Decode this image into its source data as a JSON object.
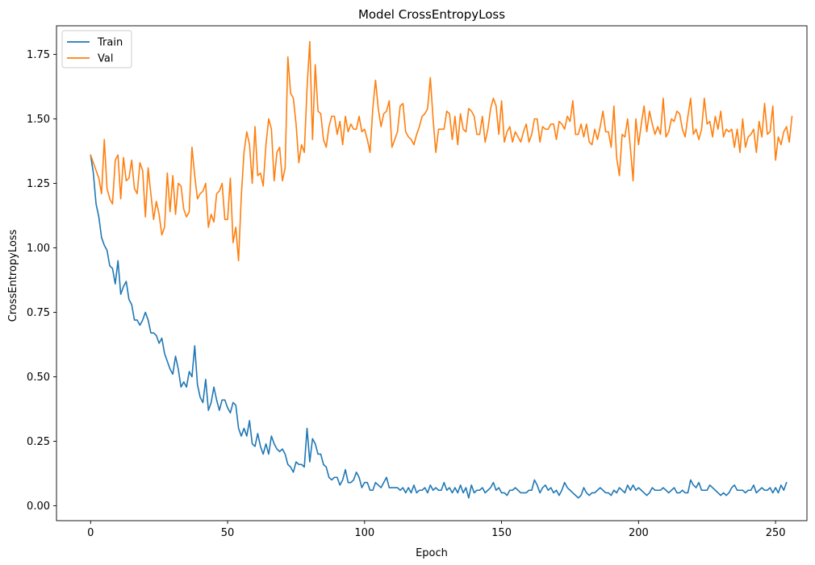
{
  "chart_data": {
    "type": "line",
    "title": "Model CrossEntropyLoss",
    "xlabel": "Epoch",
    "ylabel": "CrossEntropyLoss",
    "xlim": [
      -12.45,
      261.45
    ],
    "ylim": [
      -0.058,
      1.861
    ],
    "xticks": [
      0,
      50,
      100,
      150,
      200,
      250
    ],
    "yticks": [
      0.0,
      0.25,
      0.5,
      0.75,
      1.0,
      1.25,
      1.5,
      1.75
    ],
    "ytick_labels": [
      "0.00",
      "0.25",
      "0.50",
      "0.75",
      "1.00",
      "1.25",
      "1.50",
      "1.75"
    ],
    "xtick_labels": [
      "0",
      "50",
      "100",
      "150",
      "200",
      "250"
    ],
    "grid": false,
    "legend_position": "top-left",
    "series": [
      {
        "name": "Train",
        "color": "#1f77b4",
        "values": [
          1.36,
          1.29,
          1.17,
          1.12,
          1.04,
          1.01,
          0.99,
          0.93,
          0.92,
          0.86,
          0.95,
          0.82,
          0.85,
          0.87,
          0.8,
          0.78,
          0.72,
          0.72,
          0.7,
          0.72,
          0.75,
          0.72,
          0.67,
          0.67,
          0.66,
          0.63,
          0.65,
          0.59,
          0.56,
          0.53,
          0.51,
          0.58,
          0.53,
          0.46,
          0.48,
          0.46,
          0.52,
          0.5,
          0.62,
          0.47,
          0.42,
          0.4,
          0.49,
          0.37,
          0.4,
          0.46,
          0.41,
          0.37,
          0.41,
          0.41,
          0.38,
          0.36,
          0.4,
          0.39,
          0.3,
          0.27,
          0.3,
          0.27,
          0.33,
          0.24,
          0.23,
          0.28,
          0.23,
          0.2,
          0.24,
          0.2,
          0.27,
          0.24,
          0.22,
          0.21,
          0.22,
          0.2,
          0.16,
          0.15,
          0.13,
          0.17,
          0.16,
          0.16,
          0.15,
          0.3,
          0.17,
          0.26,
          0.24,
          0.2,
          0.2,
          0.16,
          0.15,
          0.11,
          0.1,
          0.11,
          0.11,
          0.08,
          0.1,
          0.14,
          0.09,
          0.09,
          0.1,
          0.13,
          0.11,
          0.07,
          0.09,
          0.09,
          0.06,
          0.06,
          0.09,
          0.08,
          0.07,
          0.09,
          0.11,
          0.07,
          0.07,
          0.07,
          0.07,
          0.06,
          0.07,
          0.05,
          0.07,
          0.05,
          0.08,
          0.05,
          0.06,
          0.06,
          0.07,
          0.05,
          0.08,
          0.06,
          0.07,
          0.06,
          0.06,
          0.09,
          0.06,
          0.07,
          0.05,
          0.07,
          0.05,
          0.08,
          0.05,
          0.07,
          0.03,
          0.08,
          0.05,
          0.06,
          0.06,
          0.07,
          0.05,
          0.06,
          0.07,
          0.09,
          0.06,
          0.07,
          0.05,
          0.05,
          0.04,
          0.06,
          0.06,
          0.07,
          0.06,
          0.05,
          0.05,
          0.05,
          0.06,
          0.06,
          0.1,
          0.08,
          0.05,
          0.07,
          0.08,
          0.06,
          0.07,
          0.05,
          0.06,
          0.04,
          0.06,
          0.09,
          0.07,
          0.06,
          0.05,
          0.04,
          0.03,
          0.04,
          0.07,
          0.05,
          0.04,
          0.05,
          0.05,
          0.06,
          0.07,
          0.06,
          0.05,
          0.05,
          0.04,
          0.06,
          0.05,
          0.07,
          0.06,
          0.05,
          0.08,
          0.06,
          0.08,
          0.06,
          0.07,
          0.06,
          0.05,
          0.04,
          0.05,
          0.07,
          0.06,
          0.06,
          0.06,
          0.07,
          0.06,
          0.05,
          0.06,
          0.07,
          0.05,
          0.05,
          0.06,
          0.05,
          0.05,
          0.1,
          0.08,
          0.07,
          0.09,
          0.06,
          0.06,
          0.06,
          0.08,
          0.07,
          0.06,
          0.05,
          0.04,
          0.05,
          0.04,
          0.05,
          0.07,
          0.08,
          0.06,
          0.06,
          0.06,
          0.05,
          0.06,
          0.06,
          0.08,
          0.05,
          0.06,
          0.07,
          0.06,
          0.06,
          0.07,
          0.05,
          0.07,
          0.05,
          0.08,
          0.06,
          0.09
        ]
      },
      {
        "name": "Val",
        "color": "#ff7f0e",
        "values": [
          1.36,
          1.33,
          1.3,
          1.27,
          1.21,
          1.42,
          1.23,
          1.19,
          1.17,
          1.34,
          1.36,
          1.19,
          1.35,
          1.26,
          1.27,
          1.34,
          1.23,
          1.21,
          1.33,
          1.3,
          1.12,
          1.31,
          1.21,
          1.11,
          1.18,
          1.13,
          1.05,
          1.08,
          1.29,
          1.14,
          1.28,
          1.13,
          1.25,
          1.24,
          1.15,
          1.12,
          1.14,
          1.39,
          1.28,
          1.19,
          1.21,
          1.22,
          1.25,
          1.08,
          1.13,
          1.1,
          1.21,
          1.22,
          1.25,
          1.11,
          1.11,
          1.27,
          1.02,
          1.08,
          0.95,
          1.2,
          1.37,
          1.45,
          1.4,
          1.25,
          1.47,
          1.28,
          1.29,
          1.24,
          1.4,
          1.5,
          1.46,
          1.26,
          1.37,
          1.39,
          1.26,
          1.31,
          1.74,
          1.6,
          1.58,
          1.48,
          1.33,
          1.4,
          1.37,
          1.62,
          1.8,
          1.42,
          1.71,
          1.53,
          1.52,
          1.42,
          1.39,
          1.47,
          1.51,
          1.51,
          1.44,
          1.49,
          1.4,
          1.51,
          1.45,
          1.48,
          1.46,
          1.46,
          1.51,
          1.45,
          1.46,
          1.42,
          1.37,
          1.54,
          1.65,
          1.54,
          1.47,
          1.52,
          1.53,
          1.57,
          1.39,
          1.42,
          1.45,
          1.55,
          1.56,
          1.45,
          1.43,
          1.42,
          1.4,
          1.44,
          1.47,
          1.51,
          1.52,
          1.54,
          1.66,
          1.5,
          1.37,
          1.46,
          1.46,
          1.46,
          1.53,
          1.52,
          1.42,
          1.51,
          1.4,
          1.52,
          1.46,
          1.45,
          1.54,
          1.53,
          1.51,
          1.44,
          1.44,
          1.51,
          1.41,
          1.46,
          1.54,
          1.58,
          1.55,
          1.44,
          1.57,
          1.41,
          1.45,
          1.47,
          1.41,
          1.45,
          1.43,
          1.41,
          1.45,
          1.48,
          1.41,
          1.44,
          1.5,
          1.5,
          1.41,
          1.47,
          1.46,
          1.46,
          1.48,
          1.48,
          1.42,
          1.49,
          1.48,
          1.46,
          1.51,
          1.49,
          1.57,
          1.44,
          1.44,
          1.48,
          1.43,
          1.48,
          1.41,
          1.4,
          1.46,
          1.42,
          1.47,
          1.53,
          1.45,
          1.45,
          1.39,
          1.55,
          1.35,
          1.28,
          1.44,
          1.43,
          1.5,
          1.39,
          1.26,
          1.5,
          1.4,
          1.48,
          1.55,
          1.45,
          1.53,
          1.48,
          1.44,
          1.47,
          1.44,
          1.58,
          1.43,
          1.45,
          1.5,
          1.49,
          1.53,
          1.52,
          1.46,
          1.43,
          1.51,
          1.58,
          1.44,
          1.46,
          1.42,
          1.46,
          1.58,
          1.48,
          1.49,
          1.43,
          1.51,
          1.46,
          1.53,
          1.43,
          1.46,
          1.45,
          1.46,
          1.39,
          1.46,
          1.37,
          1.5,
          1.39,
          1.43,
          1.44,
          1.46,
          1.37,
          1.49,
          1.43,
          1.56,
          1.44,
          1.45,
          1.55,
          1.34,
          1.43,
          1.4,
          1.45,
          1.47,
          1.41,
          1.51
        ]
      }
    ]
  }
}
